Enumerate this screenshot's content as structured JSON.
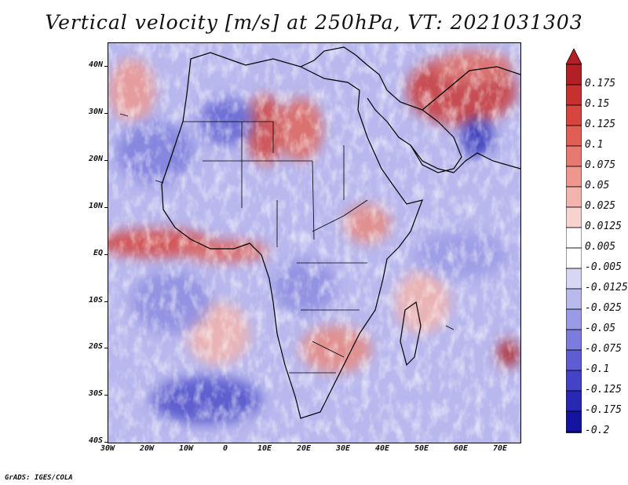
{
  "title": "Vertical velocity [m/s] at 250hPa, VT: 2021031303",
  "credit": "GrADS: IGES/COLA",
  "map": {
    "lon_range": [
      -30,
      75
    ],
    "lat_range": [
      -40,
      45
    ],
    "lat_labels": [
      "40N",
      "30N",
      "20N",
      "10N",
      "EQ",
      "10S",
      "20S",
      "30S",
      "40S"
    ],
    "lon_labels": [
      "30W",
      "20W",
      "10W",
      "0",
      "10E",
      "20E",
      "30E",
      "40E",
      "50E",
      "60E",
      "70E"
    ]
  },
  "colorbar": {
    "labels": [
      "0.175",
      "0.15",
      "0.125",
      "0.1",
      "0.075",
      "0.05",
      "0.025",
      "0.0125",
      "0.005",
      "-0.005",
      "-0.0125",
      "-0.025",
      "-0.05",
      "-0.075",
      "-0.1",
      "-0.125",
      "-0.175",
      "-0.2"
    ],
    "colors": [
      "#b21f24",
      "#c8302f",
      "#d6453e",
      "#e05f55",
      "#e77a70",
      "#ee978e",
      "#f3b4ad",
      "#f8d2cd",
      "#ffffff",
      "#ffffff",
      "#d6d6f5",
      "#b9b9ee",
      "#9a9ae6",
      "#7c7cdc",
      "#5e5ed2",
      "#4343c5",
      "#2828b5",
      "#1414a0"
    ]
  }
}
